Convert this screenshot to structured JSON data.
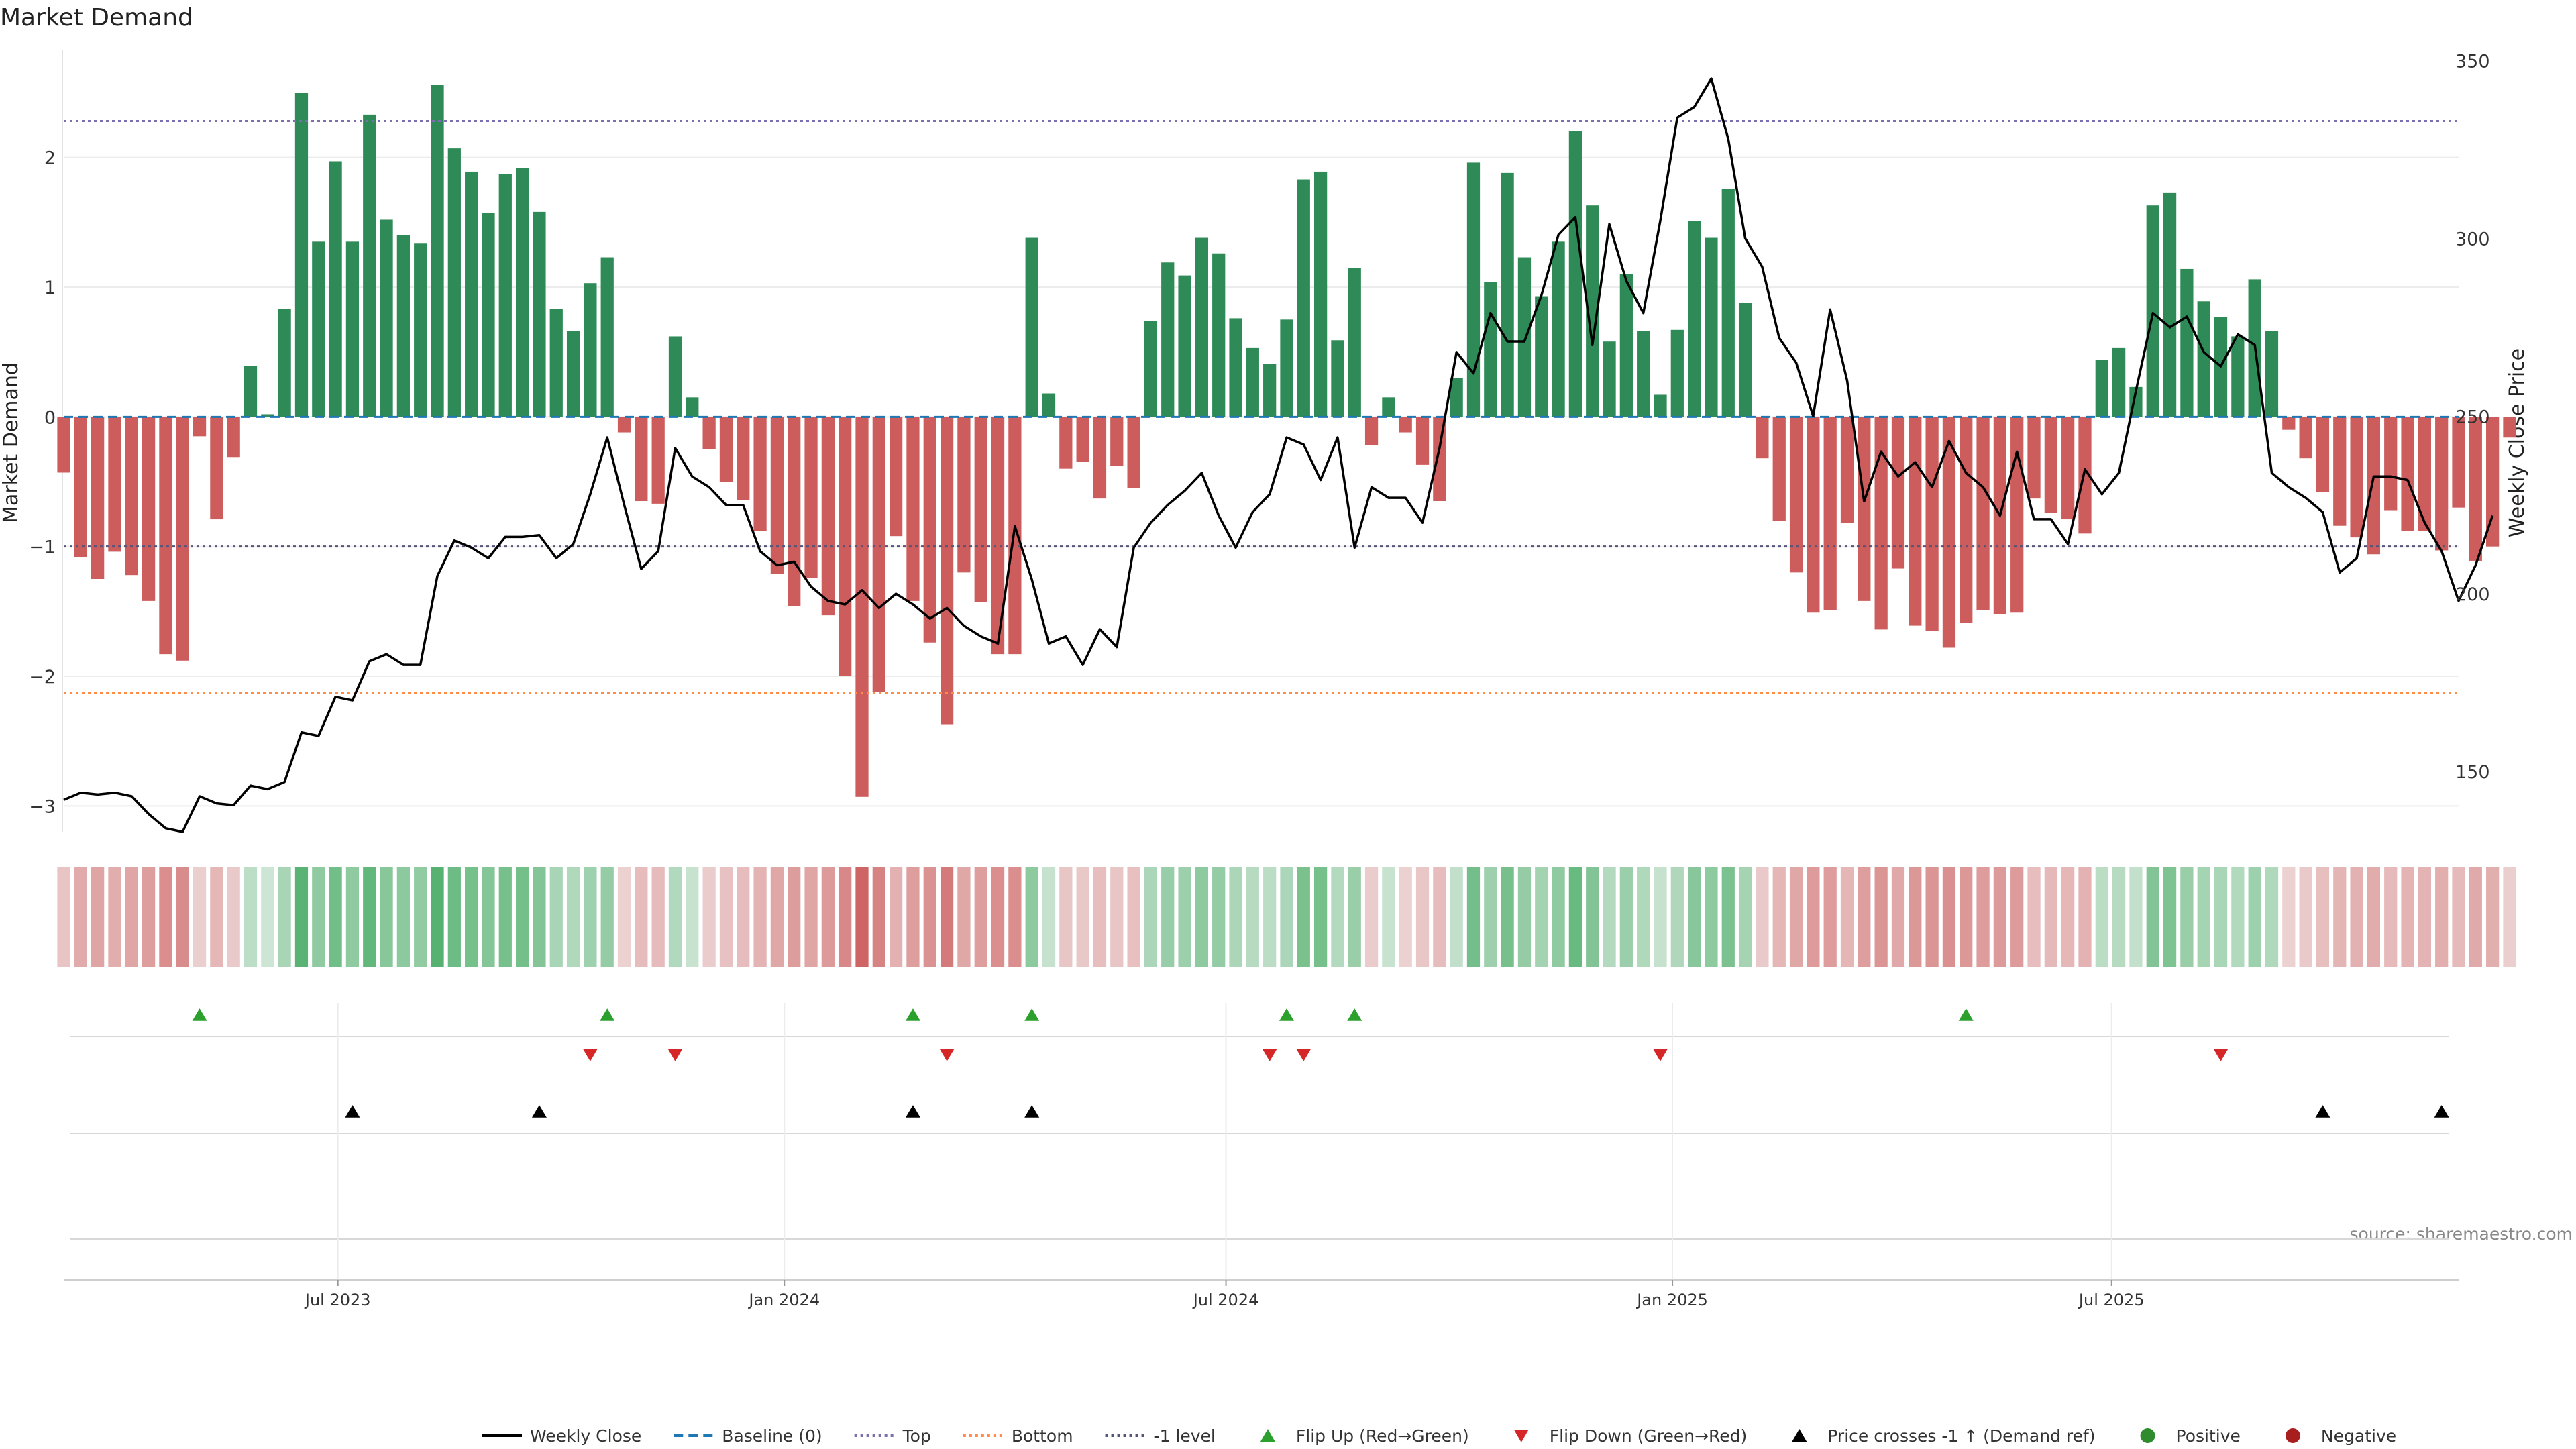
{
  "chart_data": {
    "type": "bar",
    "title": "Market Demand",
    "ylabel_left": "Market Demand",
    "ylabel_right": "Weekly Close Price",
    "source": "source: sharemaestro.com",
    "left_ylim": [
      -3.2,
      2.8
    ],
    "left_yticks": [
      -3,
      -2,
      -1,
      0,
      1,
      2
    ],
    "right_ylim": [
      133,
      352
    ],
    "right_yticks": [
      150,
      200,
      250,
      300,
      350
    ],
    "grid": true,
    "date_range": [
      "2023-03-10",
      "2025-11-21"
    ],
    "x_ticks": [
      {
        "date": "2023-07-01",
        "label": "Jul 2023"
      },
      {
        "date": "2024-01-01",
        "label": "Jan 2024"
      },
      {
        "date": "2024-07-01",
        "label": "Jul 2024"
      },
      {
        "date": "2025-01-01",
        "label": "Jan 2025"
      },
      {
        "date": "2025-07-01",
        "label": "Jul 2025"
      }
    ],
    "levels": {
      "top": 2.28,
      "bottom": -2.13,
      "minus_one": -1.0,
      "baseline": 0
    },
    "colors": {
      "positive": "#2e8b57",
      "negative": "#cd5c5c",
      "price": "#000000",
      "top": "#7b6fb0",
      "bottom": "#ff8c42",
      "minus_one": "#555577",
      "baseline": "#1f77b4",
      "flip_up": "#2ca02c",
      "flip_down": "#d62728",
      "cross": "#000000"
    },
    "weekly": {
      "start_date": "2023-03-10",
      "interval_days": 7,
      "demand": [
        -0.43,
        -1.08,
        -1.25,
        -1.04,
        -1.22,
        -1.42,
        -1.83,
        -1.88,
        -0.15,
        -0.79,
        -0.31,
        0.39,
        0.02,
        0.83,
        2.5,
        1.35,
        1.97,
        1.35,
        2.33,
        1.52,
        1.4,
        1.34,
        2.56,
        2.07,
        1.89,
        1.57,
        1.87,
        1.92,
        1.58,
        0.83,
        0.66,
        1.03,
        1.23,
        -0.12,
        -0.65,
        -0.67,
        0.62,
        0.15,
        -0.25,
        -0.5,
        -0.64,
        -0.88,
        -1.21,
        -1.46,
        -1.24,
        -1.53,
        -2.0,
        -2.93,
        -2.12,
        -0.92,
        -1.42,
        -1.74,
        -2.37,
        -1.2,
        -1.43,
        -1.83,
        -1.83,
        1.38,
        0.18,
        -0.4,
        -0.35,
        -0.63,
        -0.38,
        -0.55,
        0.74,
        1.19,
        1.09,
        1.38,
        1.26,
        0.76,
        0.53,
        0.41,
        0.75,
        1.83,
        1.89,
        0.59,
        1.15,
        -0.22,
        0.15,
        -0.12,
        -0.37,
        -0.65,
        0.3,
        1.96,
        1.04,
        1.88,
        1.23,
        0.93,
        1.35,
        2.2,
        1.63,
        0.58,
        1.1,
        0.66,
        0.17,
        0.67,
        1.51,
        1.38,
        1.76,
        0.88,
        -0.32,
        -0.8,
        -1.2,
        -1.51,
        -1.49,
        -0.82,
        -1.42,
        -1.64,
        -1.17,
        -1.61,
        -1.65,
        -1.78,
        -1.59,
        -1.49,
        -1.52,
        -1.51,
        -0.63,
        -0.74,
        -0.79,
        -0.9,
        0.44,
        0.53,
        0.23,
        1.63,
        1.73,
        1.14,
        0.89,
        0.77,
        0.62,
        1.06,
        0.66,
        -0.1,
        -0.32,
        -0.58,
        -0.84,
        -0.93,
        -1.06,
        -0.72,
        -0.88,
        -0.88,
        -1.03,
        -0.7,
        -1.11,
        -1.0,
        -0.16
      ],
      "close": [
        142,
        144,
        143.5,
        144,
        143,
        138,
        134,
        133,
        143,
        141,
        140.5,
        146,
        145,
        147,
        161,
        160,
        171,
        170,
        181,
        183,
        180,
        180,
        205,
        215,
        213,
        210,
        216,
        216,
        216.5,
        210,
        214,
        228,
        244,
        225,
        207,
        212,
        241,
        233,
        230,
        225,
        225,
        212,
        208,
        209,
        202,
        198,
        197,
        201,
        196,
        200,
        197,
        193,
        196,
        191,
        188,
        186,
        219,
        204,
        186,
        188,
        180,
        190,
        185,
        213,
        220,
        225,
        229,
        234,
        222,
        213,
        223,
        228,
        244,
        242,
        232,
        244,
        213,
        230,
        227,
        227,
        220,
        241,
        268,
        262,
        279,
        271,
        271,
        284,
        301,
        306,
        270,
        304,
        288,
        279,
        305,
        334,
        337,
        345,
        328,
        300,
        292,
        272,
        265,
        250,
        280,
        260,
        226,
        240,
        233,
        237,
        230,
        243,
        234,
        230,
        222,
        240,
        221,
        221,
        214,
        235,
        228,
        234,
        257,
        279,
        275,
        278,
        268,
        264,
        273,
        270,
        234,
        230,
        227,
        223,
        206,
        210,
        233,
        233,
        232,
        220,
        212,
        198,
        208,
        222
      ]
    },
    "flip_up_dates": [
      "2023-05-05",
      "2023-10-20",
      "2024-02-23",
      "2024-04-12",
      "2024-07-26",
      "2024-08-23",
      "2025-05-02"
    ],
    "flip_down_dates": [
      "2023-10-13",
      "2023-11-17",
      "2024-03-08",
      "2024-07-19",
      "2024-08-02",
      "2024-12-27",
      "2025-08-15"
    ],
    "price_cross_dates": [
      "2023-07-07",
      "2023-09-22",
      "2024-02-23",
      "2024-04-12",
      "2025-09-26",
      "2025-11-14"
    ],
    "legend": [
      {
        "key": "price",
        "label": "Weekly Close",
        "kind": "line-solid"
      },
      {
        "key": "baseline",
        "label": "Baseline (0)",
        "kind": "line-dash"
      },
      {
        "key": "top",
        "label": "Top",
        "kind": "line-dot"
      },
      {
        "key": "bottom",
        "label": "Bottom",
        "kind": "line-dot"
      },
      {
        "key": "minus_one",
        "label": "-1 level",
        "kind": "line-dot"
      },
      {
        "key": "flip_up",
        "label": "Flip Up (Red→Green)",
        "kind": "tri-up"
      },
      {
        "key": "flip_down",
        "label": "Flip Down (Green→Red)",
        "kind": "tri-down"
      },
      {
        "key": "cross",
        "label": "Price crosses -1 ↑ (Demand ref)",
        "kind": "tri-up"
      },
      {
        "key": "flip_up",
        "label": "Positive",
        "kind": "dot"
      },
      {
        "key": "flip_down",
        "label": "Negative",
        "kind": "dot-dark"
      }
    ]
  }
}
